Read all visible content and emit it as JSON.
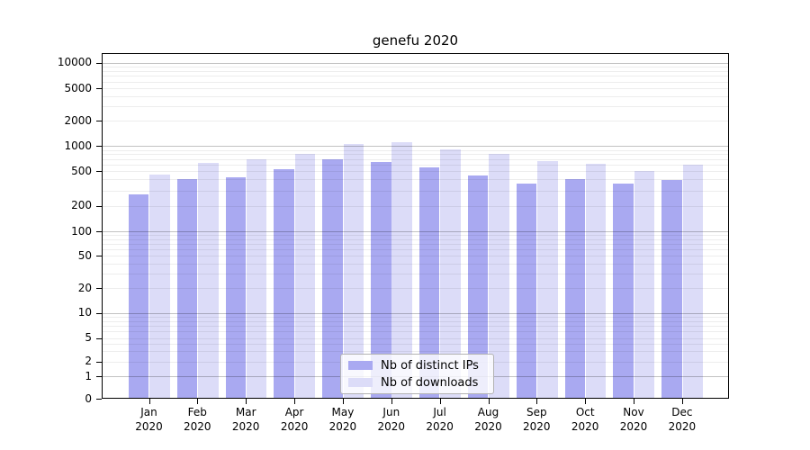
{
  "chart_data": {
    "type": "bar",
    "title": "genefu 2020",
    "categories": [
      "Jan 2020",
      "Feb 2020",
      "Mar 2020",
      "Apr 2020",
      "May 2020",
      "Jun 2020",
      "Jul 2020",
      "Aug 2020",
      "Sep 2020",
      "Oct 2020",
      "Nov 2020",
      "Dec 2020"
    ],
    "series": [
      {
        "name": "Nb of distinct IPs",
        "color": "#a9a9f1",
        "values": [
          270,
          400,
          425,
          530,
          695,
          650,
          560,
          440,
          355,
          400,
          355,
          390
        ]
      },
      {
        "name": "Nb of downloads",
        "color": "#dcdcf8",
        "values": [
          450,
          620,
          700,
          815,
          1070,
          1100,
          915,
          810,
          660,
          605,
          500,
          595
        ]
      }
    ],
    "xlabel": "",
    "ylabel": "",
    "yscale": "log (linear segment below 1, includes 0)",
    "yticks": [
      0,
      1,
      2,
      5,
      10,
      20,
      50,
      100,
      200,
      500,
      1000,
      2000,
      5000,
      10000
    ],
    "ylim": [
      0,
      13000
    ],
    "grid": "horizontal major and minor gridlines on",
    "legend_position": "inside, lower center"
  },
  "colors": {
    "background": "#ffffff",
    "axis": "#000000",
    "grid_major": "#c2c2c2",
    "grid_minor": "#ededed",
    "bar_distinct_ips": "#a9a9f1",
    "bar_downloads": "#dcdcf8"
  }
}
